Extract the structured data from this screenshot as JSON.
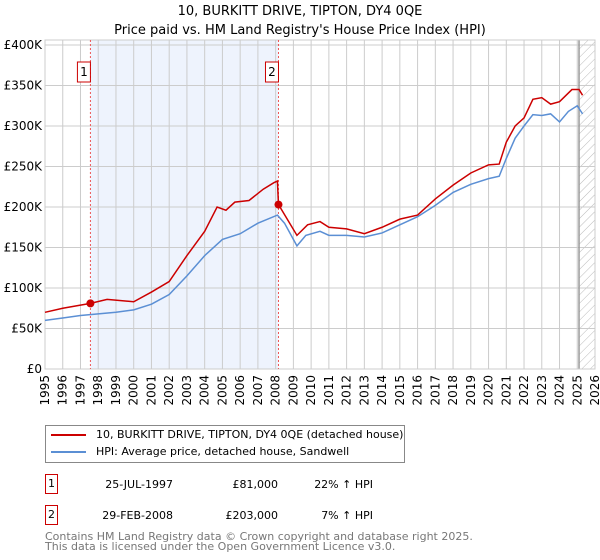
{
  "title": [
    "10, BURKITT DRIVE, TIPTON, DY4 0QE",
    "Price paid vs. HM Land Registry's House Price Index (HPI)"
  ],
  "colors": {
    "property": "#cc0000",
    "hpi": "#5b8fd4",
    "shade": "#eef3fd"
  },
  "chart_data": {
    "type": "line",
    "xlim": [
      1995,
      2026
    ],
    "ylim": [
      0,
      400000
    ],
    "yticks": [
      {
        "v": 0,
        "l": "£0"
      },
      {
        "v": 50000,
        "l": "£50K"
      },
      {
        "v": 100000,
        "l": "£100K"
      },
      {
        "v": 150000,
        "l": "£150K"
      },
      {
        "v": 200000,
        "l": "£200K"
      },
      {
        "v": 250000,
        "l": "£250K"
      },
      {
        "v": 300000,
        "l": "£300K"
      },
      {
        "v": 350000,
        "l": "£350K"
      },
      {
        "v": 400000,
        "l": "£400K"
      }
    ],
    "xticks": [
      "1995",
      "1996",
      "1997",
      "1998",
      "1999",
      "2000",
      "2001",
      "2002",
      "2003",
      "2004",
      "2005",
      "2006",
      "2007",
      "2008",
      "2009",
      "2010",
      "2011",
      "2012",
      "2013",
      "2014",
      "2015",
      "2016",
      "2017",
      "2018",
      "2019",
      "2020",
      "2021",
      "2022",
      "2023",
      "2024",
      "2025",
      "2026"
    ],
    "shaded_range": [
      1997.56,
      2008.16
    ],
    "forecast_hatch_from": 2025.1,
    "series": [
      {
        "name": "10, BURKITT DRIVE, TIPTON, DY4 0QE (detached house)",
        "x": [
          1995,
          1996,
          1997.56,
          1998.5,
          2000,
          2001,
          2002,
          2003,
          2004,
          2004.7,
          2005.2,
          2005.7,
          2006.5,
          2007.3,
          2007.9,
          2008.1,
          2008.16,
          2009.2,
          2009.8,
          2010.5,
          2011,
          2012,
          2013,
          2014,
          2015,
          2016,
          2017,
          2018,
          2019,
          2020,
          2020.6,
          2021,
          2021.5,
          2022,
          2022.5,
          2023,
          2023.5,
          2024,
          2024.7,
          2025.1,
          2025.3
        ],
        "y": [
          70000,
          75000,
          81000,
          86000,
          83000,
          95000,
          108000,
          140000,
          170000,
          200000,
          196000,
          206000,
          208000,
          222000,
          230000,
          232000,
          203000,
          165000,
          178000,
          182000,
          175000,
          173000,
          167000,
          175000,
          185000,
          190000,
          210000,
          227000,
          242000,
          252000,
          253000,
          280000,
          300000,
          310000,
          333000,
          335000,
          327000,
          330000,
          345000,
          345000,
          338000
        ]
      },
      {
        "name": "HPI: Average price, detached house, Sandwell",
        "x": [
          1995,
          1996,
          1997,
          1998,
          1999,
          2000,
          2001,
          2002,
          2003,
          2004,
          2005,
          2006,
          2007,
          2008.1,
          2008.5,
          2009.2,
          2009.7,
          2010.5,
          2011,
          2012,
          2013,
          2014,
          2015,
          2016,
          2017,
          2018,
          2019,
          2020,
          2020.6,
          2021,
          2021.5,
          2022,
          2022.5,
          2023,
          2023.5,
          2024,
          2024.5,
          2025,
          2025.3
        ],
        "y": [
          60000,
          63000,
          66000,
          68000,
          70000,
          73000,
          80000,
          92000,
          115000,
          140000,
          160000,
          167000,
          180000,
          190000,
          180000,
          152000,
          165000,
          170000,
          165000,
          165000,
          163000,
          168000,
          178000,
          188000,
          202000,
          218000,
          228000,
          235000,
          238000,
          260000,
          285000,
          300000,
          314000,
          313000,
          315000,
          305000,
          318000,
          325000,
          315000
        ]
      }
    ],
    "sales": [
      {
        "label": "1",
        "x": 1997.56,
        "y": 81000
      },
      {
        "label": "2",
        "x": 2008.16,
        "y": 203000
      }
    ]
  },
  "transactions": [
    {
      "num": "1",
      "date": "25-JUL-1997",
      "price": "£81,000",
      "hpi": "22% ↑ HPI"
    },
    {
      "num": "2",
      "date": "29-FEB-2008",
      "price": "£203,000",
      "hpi": "7% ↑ HPI"
    }
  ],
  "footer": [
    "Contains HM Land Registry data © Crown copyright and database right 2025.",
    "This data is licensed under the Open Government Licence v3.0."
  ]
}
